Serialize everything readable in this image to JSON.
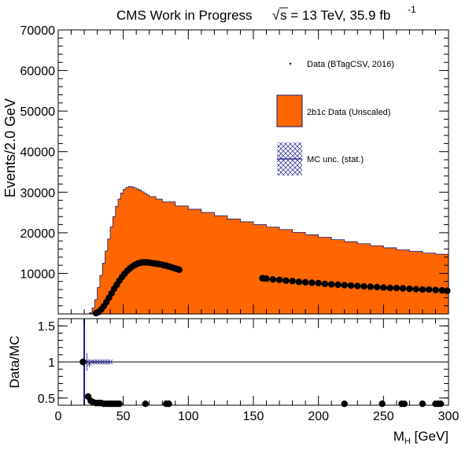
{
  "header": {
    "label": "CMS Work in Progress",
    "sqrt_symbol": "√",
    "energy": "s = 13 TeV, 35.9 fb",
    "lumi_exponent": "-1"
  },
  "colors": {
    "fill": "#ff6600",
    "fill_edge": "#1a1a6e",
    "marker": "#000000",
    "mc_unc": "#1a1a8a"
  },
  "legend": {
    "data_label": "Data (BTagCSV, 2016)",
    "fill_label": "2b1c Data (Unscaled)",
    "unc_label": "MC unc. (stat.)"
  },
  "chart_data": [
    {
      "type": "area",
      "ylabel": "Events/2.0 GeV",
      "xlim": [
        0,
        300
      ],
      "ylim": [
        0,
        70000
      ],
      "yticks": [
        "10000",
        "20000",
        "30000",
        "40000",
        "50000",
        "60000",
        "70000"
      ],
      "series": [
        {
          "name": "2b1c Data (Unscaled)",
          "style": "filled-step",
          "x": [
            0,
            14,
            16,
            18,
            20,
            22,
            24,
            26,
            28,
            30,
            32,
            34,
            36,
            38,
            40,
            42,
            44,
            46,
            48,
            50,
            52,
            54,
            56,
            58,
            60,
            62,
            64,
            66,
            68,
            70,
            75,
            80,
            90,
            100,
            110,
            120,
            130,
            140,
            150,
            160,
            170,
            180,
            190,
            200,
            210,
            220,
            230,
            240,
            250,
            260,
            270,
            280,
            290,
            300
          ],
          "y": [
            0,
            0,
            0,
            0,
            0,
            0,
            300,
            1500,
            3500,
            6500,
            9500,
            12500,
            15500,
            18500,
            21500,
            24000,
            26500,
            28300,
            29800,
            30700,
            31200,
            31400,
            31300,
            31100,
            30800,
            30500,
            30100,
            29700,
            29300,
            28900,
            28300,
            27600,
            26600,
            25800,
            25000,
            24200,
            23400,
            22700,
            22000,
            21400,
            20800,
            20100,
            19500,
            18900,
            18300,
            17800,
            17300,
            16800,
            16300,
            15800,
            15400,
            15000,
            14700,
            14500
          ]
        },
        {
          "name": "Data (BTagCSV, 2016)",
          "style": "markers",
          "x": [
            19,
            21,
            23,
            25,
            27,
            29,
            31,
            33,
            35,
            37,
            39,
            41,
            43,
            45,
            47,
            49,
            51,
            53,
            55,
            57,
            59,
            61,
            63,
            65,
            67,
            69,
            71,
            73,
            75,
            77,
            79,
            81,
            83,
            85,
            87,
            89,
            91,
            93,
            157,
            160,
            165,
            170,
            175,
            180,
            185,
            190,
            195,
            200,
            205,
            210,
            215,
            220,
            225,
            230,
            235,
            240,
            245,
            250,
            255,
            260,
            265,
            270,
            275,
            280,
            285,
            290,
            295,
            299
          ],
          "y": [
            0,
            0,
            0,
            0,
            0,
            200,
            500,
            1100,
            1900,
            2900,
            4000,
            5100,
            6200,
            7200,
            8200,
            9100,
            9900,
            10600,
            11200,
            11700,
            12100,
            12400,
            12600,
            12700,
            12700,
            12700,
            12600,
            12500,
            12400,
            12300,
            12200,
            12000,
            11900,
            11700,
            11500,
            11300,
            11100,
            10900,
            8800,
            8700,
            8500,
            8400,
            8200,
            8100,
            7900,
            7800,
            7700,
            7600,
            7400,
            7300,
            7200,
            7100,
            7000,
            6900,
            6800,
            6700,
            6600,
            6500,
            6400,
            6400,
            6300,
            6200,
            6100,
            6000,
            6000,
            5900,
            5800,
            5700
          ]
        }
      ]
    },
    {
      "type": "scatter",
      "ylabel": "Data/MC",
      "xlabel": "M_H [GeV]",
      "xlabel_main": "M",
      "xlabel_sub": "H",
      "xlabel_unit": " [GeV]",
      "xlim": [
        0,
        300
      ],
      "ylim": [
        0.4,
        1.6
      ],
      "reference_line": 1.0,
      "xticks": [
        "0",
        "50",
        "100",
        "150",
        "200",
        "250",
        "300"
      ],
      "yticks": [
        "0.5",
        "1",
        "1.5"
      ],
      "series": [
        {
          "name": "Data (BTagCSV, 2016)",
          "x": [
            19,
            23,
            25,
            27,
            29,
            31,
            33,
            35,
            37,
            39,
            41,
            43,
            45,
            47,
            67,
            83,
            85,
            220,
            249,
            264,
            266,
            280,
            290,
            292,
            294
          ],
          "y": [
            1.0,
            0.52,
            0.46,
            0.44,
            0.43,
            0.43,
            0.43,
            0.42,
            0.42,
            0.42,
            0.42,
            0.42,
            0.42,
            0.42,
            0.42,
            0.42,
            0.42,
            0.42,
            0.42,
            0.42,
            0.42,
            0.42,
            0.42,
            0.42,
            0.42
          ]
        },
        {
          "name": "MC unc. (stat.)",
          "x": [
            20,
            22,
            24,
            26,
            28,
            30,
            32,
            34,
            36,
            38,
            40
          ],
          "y": [
            1.0,
            1.0,
            0.98,
            1.0,
            1.0,
            1.0,
            1.0,
            1.0,
            1.0,
            1.0,
            1.0
          ],
          "err": [
            0.9,
            0.12,
            0.05,
            0.02,
            0.01,
            0.01,
            0.01,
            0.01,
            0.005,
            0.005,
            0.005
          ]
        }
      ]
    }
  ]
}
